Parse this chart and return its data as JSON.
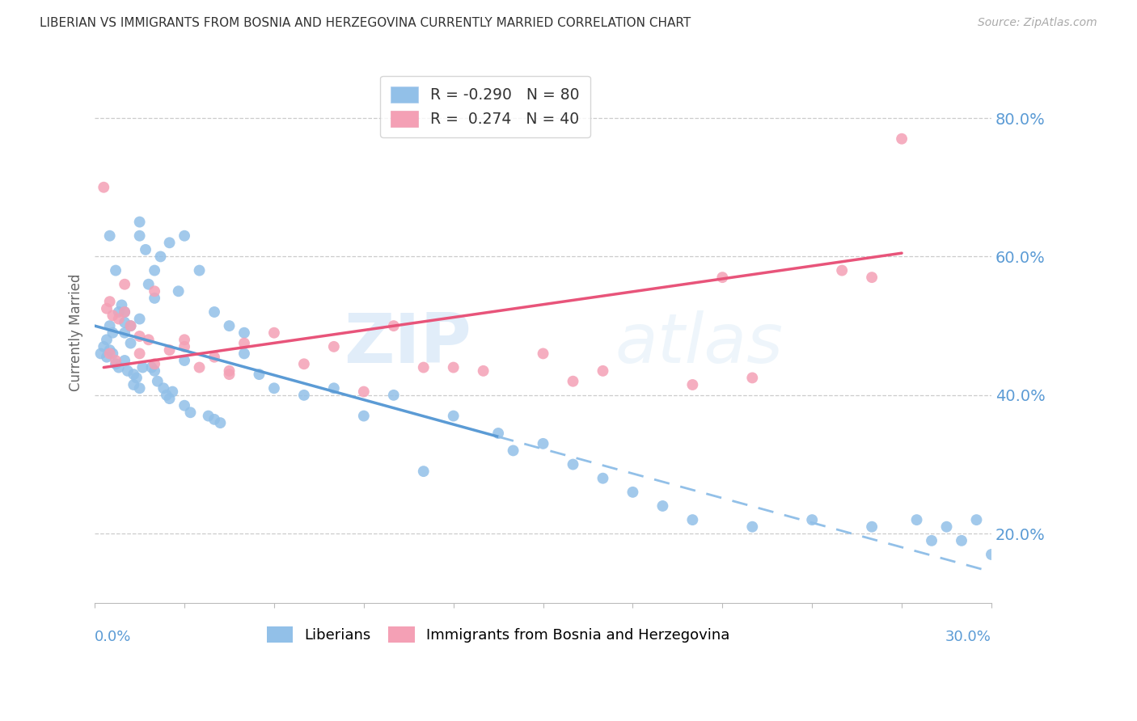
{
  "title": "LIBERIAN VS IMMIGRANTS FROM BOSNIA AND HERZEGOVINA CURRENTLY MARRIED CORRELATION CHART",
  "source": "Source: ZipAtlas.com",
  "ylabel": "Currently Married",
  "right_ytick_values": [
    20.0,
    40.0,
    60.0,
    80.0
  ],
  "xlim": [
    0.0,
    30.0
  ],
  "ylim": [
    10.0,
    88.0
  ],
  "blue_color": "#5b9bd5",
  "blue_scatter_color": "#92c0e8",
  "pink_color": "#e8547a",
  "pink_scatter_color": "#f4a0b5",
  "blue_R": -0.29,
  "blue_N": 80,
  "pink_R": 0.274,
  "pink_N": 40,
  "watermark": "ZIPatlas",
  "legend_bottom": [
    "Liberians",
    "Immigrants from Bosnia and Herzegovina"
  ],
  "background_color": "#ffffff",
  "blue_line_x0": 0.0,
  "blue_line_y0": 50.0,
  "blue_line_x1": 13.5,
  "blue_line_y1": 34.0,
  "blue_dash_x0": 13.5,
  "blue_dash_y0": 34.0,
  "blue_dash_x1": 30.0,
  "blue_dash_y1": 14.5,
  "pink_line_x0": 0.3,
  "pink_line_y0": 44.0,
  "pink_line_x1": 27.0,
  "pink_line_y1": 60.5,
  "blue_x": [
    0.2,
    0.3,
    0.4,
    0.4,
    0.5,
    0.5,
    0.5,
    0.6,
    0.6,
    0.7,
    0.7,
    0.8,
    0.8,
    0.9,
    1.0,
    1.0,
    1.0,
    1.0,
    1.1,
    1.2,
    1.2,
    1.3,
    1.3,
    1.4,
    1.5,
    1.5,
    1.5,
    1.5,
    1.6,
    1.7,
    1.8,
    1.9,
    2.0,
    2.0,
    2.0,
    2.1,
    2.2,
    2.3,
    2.4,
    2.5,
    2.5,
    2.6,
    2.8,
    3.0,
    3.0,
    3.0,
    3.2,
    3.5,
    3.8,
    4.0,
    4.0,
    4.2,
    4.5,
    5.0,
    5.0,
    5.5,
    6.0,
    7.0,
    8.0,
    9.0,
    10.0,
    11.0,
    12.0,
    13.5,
    14.0,
    15.0,
    16.0,
    17.0,
    18.0,
    19.0,
    20.0,
    22.0,
    24.0,
    26.0,
    27.5,
    28.0,
    28.5,
    29.0,
    29.5,
    30.0
  ],
  "blue_y": [
    46.0,
    47.0,
    45.5,
    48.0,
    63.0,
    50.0,
    46.5,
    49.0,
    46.0,
    58.0,
    44.5,
    52.0,
    44.0,
    53.0,
    52.0,
    50.5,
    49.0,
    45.0,
    43.5,
    50.0,
    47.5,
    43.0,
    41.5,
    42.5,
    65.0,
    63.0,
    51.0,
    41.0,
    44.0,
    61.0,
    56.0,
    44.0,
    58.0,
    54.0,
    43.5,
    42.0,
    60.0,
    41.0,
    40.0,
    62.0,
    39.5,
    40.5,
    55.0,
    63.0,
    45.0,
    38.5,
    37.5,
    58.0,
    37.0,
    52.0,
    36.5,
    36.0,
    50.0,
    49.0,
    46.0,
    43.0,
    41.0,
    40.0,
    41.0,
    37.0,
    40.0,
    29.0,
    37.0,
    34.5,
    32.0,
    33.0,
    30.0,
    28.0,
    26.0,
    24.0,
    22.0,
    21.0,
    22.0,
    21.0,
    22.0,
    19.0,
    21.0,
    19.0,
    22.0,
    17.0
  ],
  "pink_x": [
    0.3,
    0.4,
    0.5,
    0.6,
    0.8,
    1.0,
    1.2,
    1.5,
    1.8,
    2.0,
    2.5,
    3.0,
    3.5,
    4.0,
    4.5,
    5.0,
    6.0,
    7.0,
    8.0,
    9.0,
    10.0,
    11.0,
    12.0,
    13.0,
    15.0,
    16.0,
    17.0,
    20.0,
    21.0,
    22.0,
    25.0,
    26.0,
    27.0,
    0.5,
    0.7,
    1.0,
    1.5,
    2.0,
    3.0,
    4.5
  ],
  "pink_y": [
    70.0,
    52.5,
    53.5,
    51.5,
    51.0,
    56.0,
    50.0,
    48.5,
    48.0,
    55.0,
    46.5,
    47.0,
    44.0,
    45.5,
    43.5,
    47.5,
    49.0,
    44.5,
    47.0,
    40.5,
    50.0,
    44.0,
    44.0,
    43.5,
    46.0,
    42.0,
    43.5,
    41.5,
    57.0,
    42.5,
    58.0,
    57.0,
    77.0,
    46.0,
    45.0,
    52.0,
    46.0,
    44.5,
    48.0,
    43.0
  ]
}
